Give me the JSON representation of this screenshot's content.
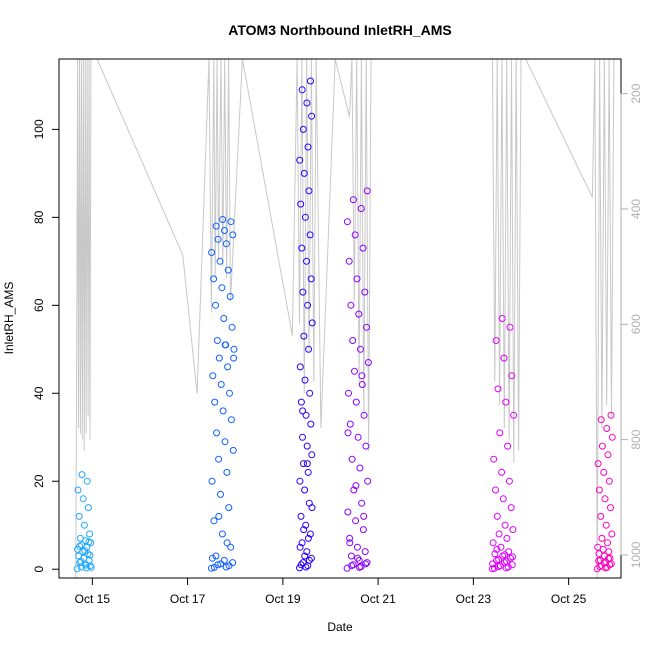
{
  "chart_data": {
    "type": "scatter",
    "title": "ATOM3 Northbound InletRH_AMS",
    "xlabel": "Date",
    "ylabel": "InletRH_AMS",
    "x_ticks": [
      "Oct 15",
      "Oct 17",
      "Oct 19",
      "Oct 21",
      "Oct 23",
      "Oct 25"
    ],
    "x_tick_days": [
      15,
      17,
      19,
      21,
      23,
      25
    ],
    "xlim": [
      14.3,
      26.1
    ],
    "y_ticks": [
      0,
      20,
      40,
      60,
      80,
      100
    ],
    "ylim": [
      -2,
      116
    ],
    "y2_ticks": [
      200,
      400,
      600,
      800,
      1000
    ],
    "y2lim": [
      1040,
      140
    ],
    "y2_color": "#b0b0b0",
    "grid": false,
    "series": [
      {
        "color": "#1fa8ff",
        "x_range": [
          14.68,
          14.98
        ],
        "values": [
          0.1,
          0.3,
          0.5,
          0.8,
          1.2,
          1.5,
          2,
          2.5,
          3,
          3.5,
          4,
          4.5,
          5,
          5.5,
          6,
          6.5,
          7,
          8,
          10,
          12,
          14,
          16,
          18,
          20,
          21.5,
          0.4,
          0.9,
          1.8,
          3.2,
          4.2,
          5.2,
          6.2
        ]
      },
      {
        "color": "#0f60ff",
        "x_range": [
          17.5,
          17.98
        ],
        "values": [
          0.2,
          0.5,
          1,
          1.5,
          2,
          3,
          5,
          8,
          11,
          14,
          17,
          20,
          22,
          25,
          27,
          29,
          31,
          34,
          36,
          38,
          40,
          42,
          44,
          46,
          48,
          50,
          51,
          52,
          55,
          57,
          60,
          62,
          64,
          66,
          68,
          70,
          72,
          74,
          75,
          76,
          77,
          78,
          79,
          79.5,
          0.4,
          0.8,
          1.2,
          2.5,
          6,
          12,
          48,
          51
        ]
      },
      {
        "color": "#2b00ff",
        "x_range": [
          19.35,
          19.62
        ],
        "values": [
          0.3,
          0.8,
          1.5,
          2.5,
          4,
          6,
          8,
          10,
          12,
          15,
          18,
          20,
          22,
          24,
          26,
          28,
          30,
          33,
          35,
          38,
          40,
          43,
          46,
          50,
          53,
          56,
          60,
          63,
          66,
          70,
          73,
          76,
          80,
          83,
          86,
          90,
          93,
          96,
          100,
          103,
          106,
          109,
          111,
          0.5,
          1,
          2,
          3,
          5,
          7,
          9,
          14,
          24,
          36
        ]
      },
      {
        "color": "#8a00ff",
        "x_range": [
          20.35,
          20.8
        ],
        "values": [
          0.2,
          0.6,
          1,
          1.5,
          2,
          3,
          4,
          5,
          7,
          9,
          11,
          13,
          15,
          18,
          20,
          23,
          25,
          28,
          30,
          33,
          35,
          38,
          40,
          42,
          45,
          47,
          50,
          52,
          55,
          58,
          60,
          63,
          66,
          70,
          73,
          76,
          79,
          82,
          84,
          86,
          0.4,
          0.8,
          1.2,
          2.5,
          6,
          12,
          19,
          31,
          44
        ]
      },
      {
        "color": "#e000ff",
        "x_range": [
          23.4,
          23.85
        ],
        "values": [
          0.1,
          0.3,
          0.6,
          1,
          1.5,
          2,
          2.5,
          3,
          3.5,
          4,
          5,
          6,
          7,
          8,
          9,
          10,
          12,
          14,
          16,
          18,
          20,
          22,
          25,
          28,
          31,
          35,
          38,
          41,
          44,
          48,
          52,
          55,
          57,
          0.2,
          0.5,
          0.8,
          1.2,
          1.8,
          2.2,
          2.8,
          3.3,
          4.5
        ]
      },
      {
        "color": "#ff00c0",
        "x_range": [
          25.6,
          25.92
        ],
        "values": [
          0.1,
          0.4,
          0.8,
          1.2,
          1.6,
          2,
          2.5,
          3,
          3.5,
          4,
          4.5,
          5,
          6,
          7,
          8,
          10,
          12,
          14,
          16,
          18,
          20,
          22,
          24,
          26,
          28,
          30,
          32,
          34,
          35,
          0.3,
          0.6,
          1,
          1.4,
          1.9,
          2.4
        ]
      }
    ],
    "secondary_lines": [
      {
        "color": "#c8c8c8",
        "x": [
          14.65,
          14.67,
          14.69,
          14.71,
          14.73,
          14.75,
          14.77,
          14.79,
          14.81,
          14.83,
          14.85,
          14.87,
          14.89,
          14.91,
          14.93,
          14.95,
          14.97,
          15.1,
          16.9,
          17.2,
          17.45,
          17.5,
          17.55,
          17.58,
          17.62,
          17.65,
          17.7,
          17.74,
          17.78,
          17.82,
          17.86,
          17.9,
          18.15,
          19.2,
          19.3,
          19.35,
          19.4,
          19.45,
          19.5,
          19.55,
          19.6,
          19.65,
          19.7,
          19.8,
          20.1,
          20.4,
          20.45,
          20.5,
          20.55,
          20.6,
          20.65,
          20.7,
          20.75,
          20.8,
          20.85,
          23.4,
          23.45,
          23.5,
          23.55,
          23.6,
          23.65,
          23.7,
          23.75,
          23.8,
          23.85,
          23.9,
          23.95,
          24.0,
          24.1,
          25.5,
          25.55,
          25.6,
          25.65,
          25.7,
          25.75,
          25.8,
          25.85,
          25.9,
          25.95
        ],
        "y": [
          1040,
          700,
          140,
          780,
          140,
          790,
          140,
          800,
          140,
          820,
          140,
          790,
          140,
          760,
          140,
          800,
          140,
          140,
          480,
          720,
          140,
          580,
          140,
          520,
          140,
          490,
          140,
          500,
          140,
          520,
          140,
          560,
          140,
          620,
          140,
          600,
          140,
          720,
          140,
          650,
          140,
          700,
          140,
          780,
          140,
          240,
          140,
          560,
          140,
          700,
          140,
          760,
          140,
          820,
          140,
          140,
          700,
          140,
          740,
          140,
          780,
          140,
          800,
          140,
          840,
          140,
          820,
          140,
          140,
          380,
          140,
          1040,
          140,
          780,
          140,
          740,
          140,
          760,
          140
        ]
      }
    ]
  }
}
